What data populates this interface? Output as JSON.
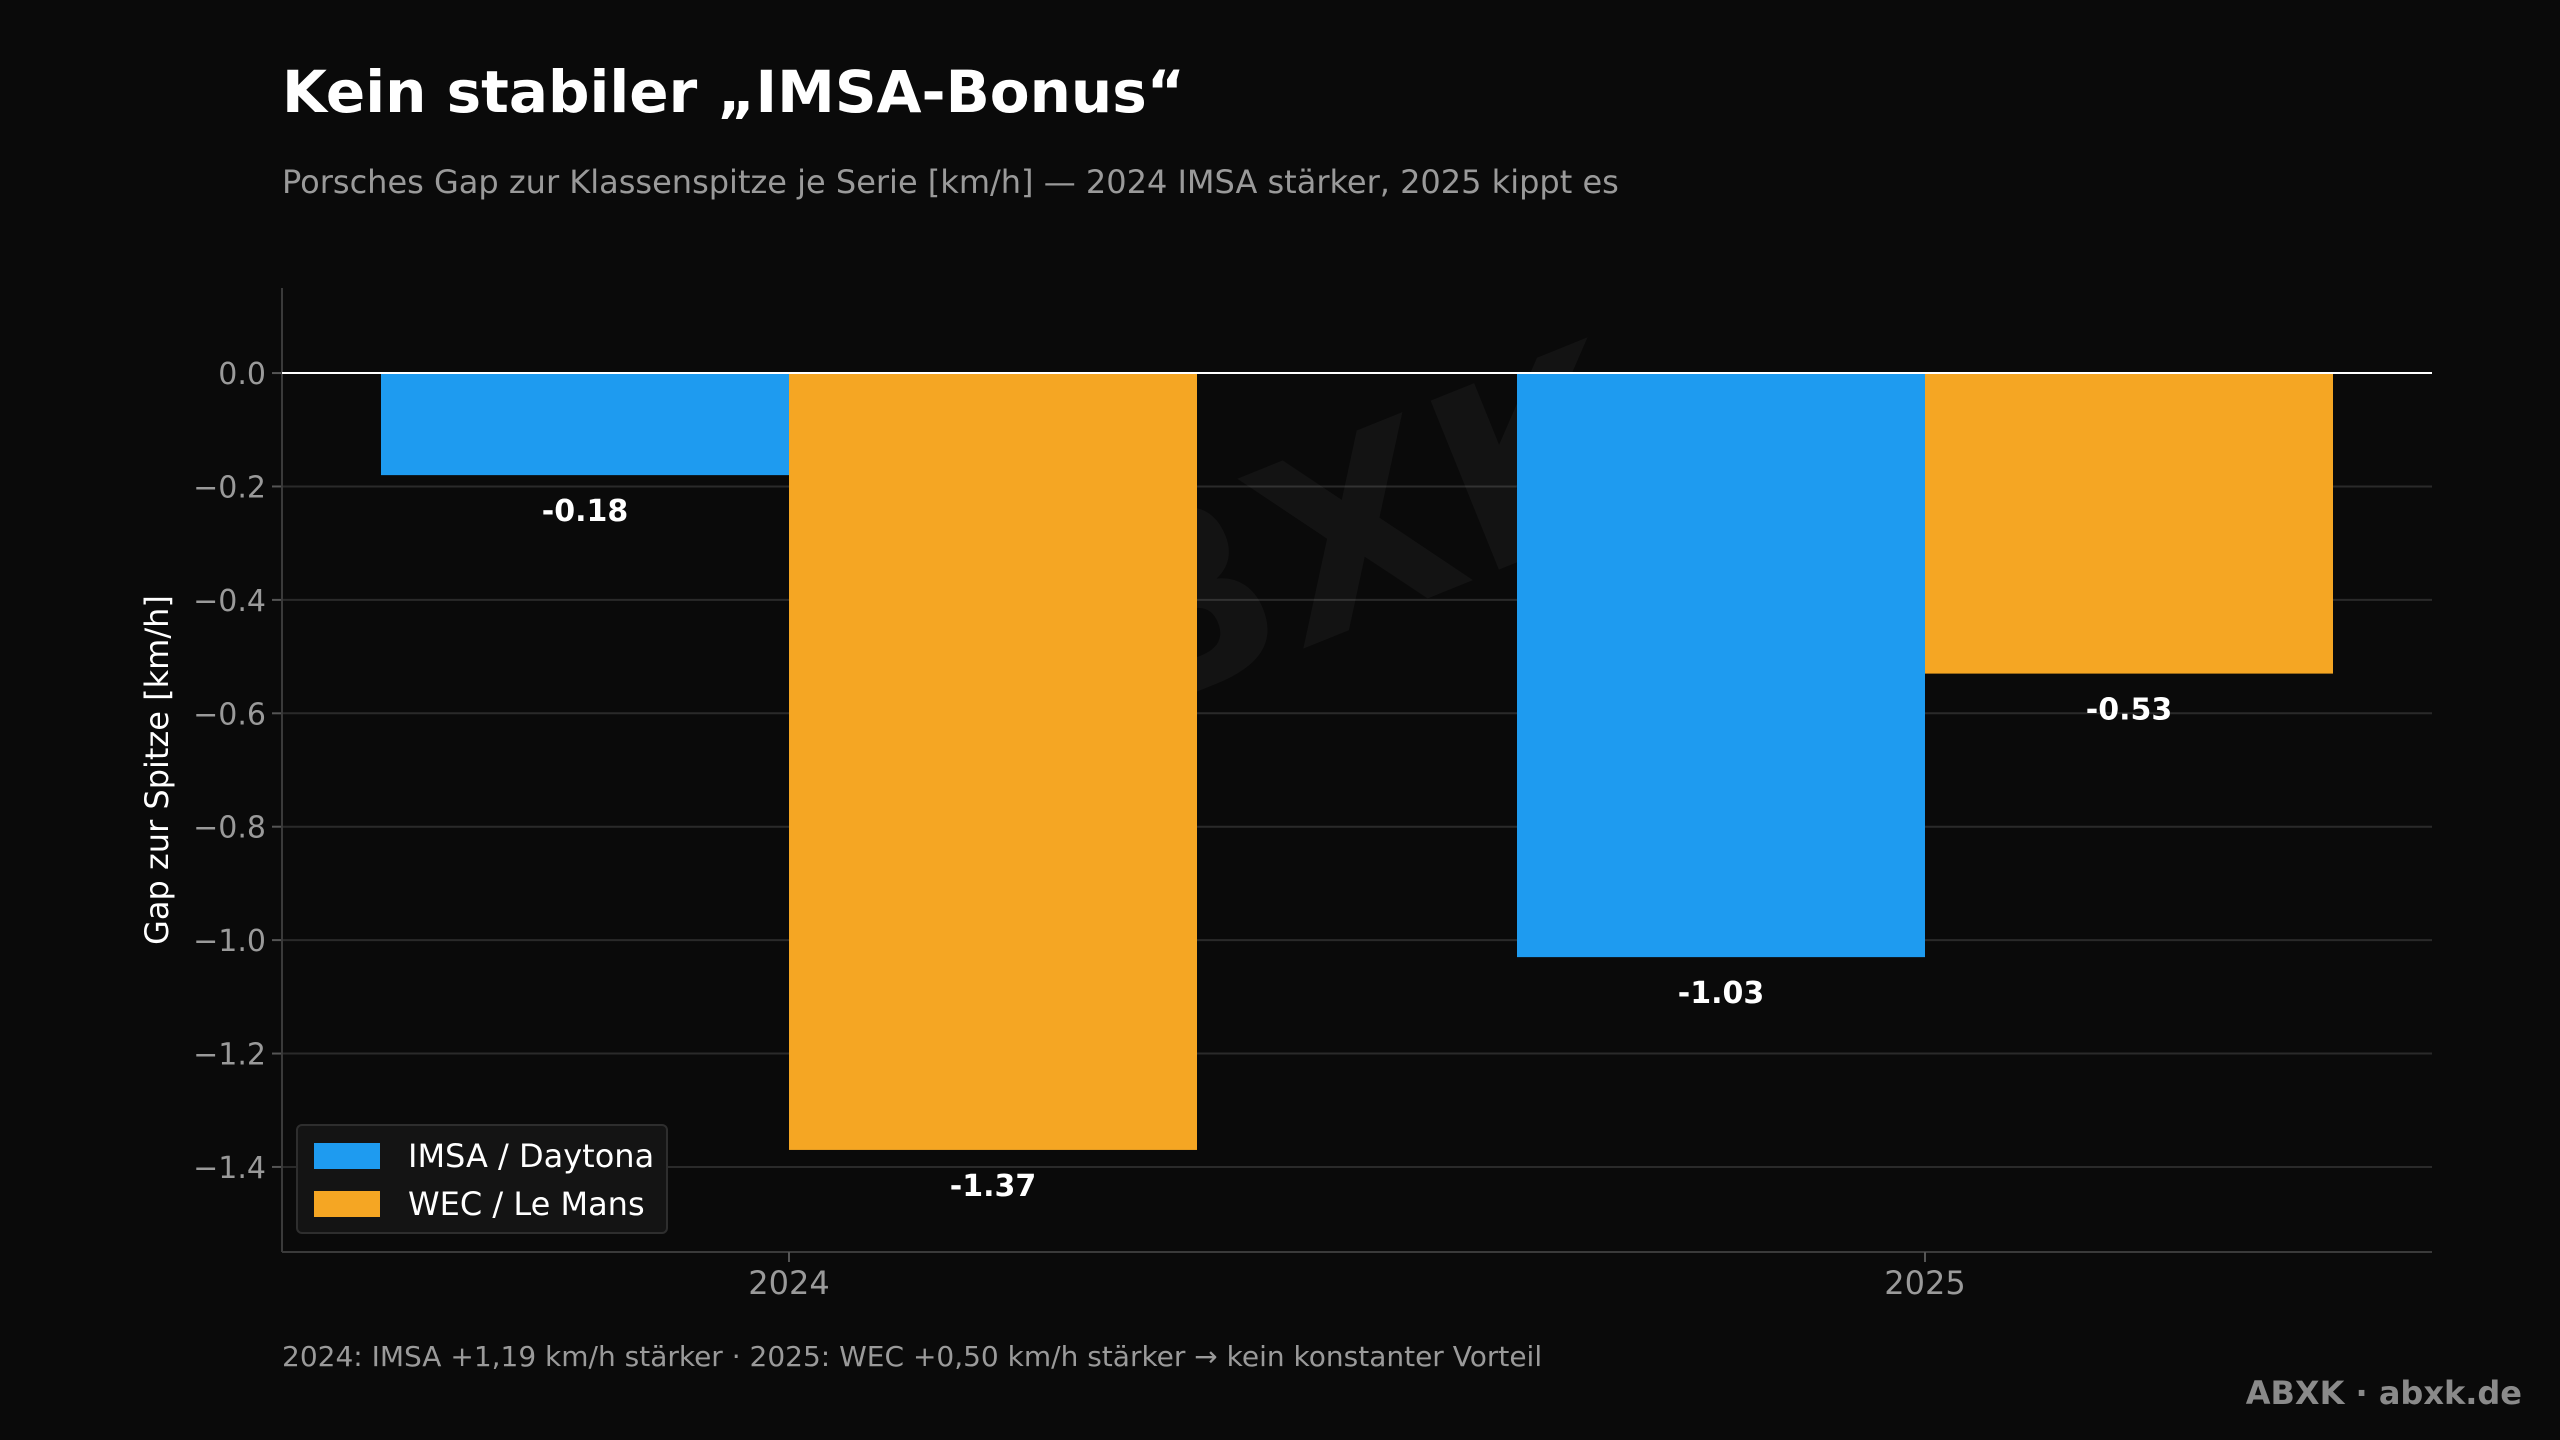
{
  "title": "Kein stabiler „IMSA-Bonus“",
  "subtitle": "Porsches Gap zur Klassenspitze je Serie [km/h] — 2024 IMSA stärker, 2025 kippt es",
  "footnote": "2024: IMSA +1,19 km/h stärker  ·  2025: WEC +0,50 km/h stärker → kein konstanter Vorteil",
  "brand": "ABXK · abxk.de",
  "watermark": "ABXK",
  "colors": {
    "background": "#0a0a0a",
    "imsa": "#1e9bf0",
    "wec": "#f5a623",
    "grid": "#2a2a2a",
    "zero_line": "#ffffff",
    "tick_text": "#9a9a9a"
  },
  "chart_data": {
    "type": "bar",
    "categories": [
      "2024",
      "2025"
    ],
    "series": [
      {
        "name": "IMSA / Daytona",
        "values": [
          -0.18,
          -1.03
        ],
        "labels": [
          "-0.18",
          "-1.03"
        ]
      },
      {
        "name": "WEC / Le Mans",
        "values": [
          -1.37,
          -0.53
        ],
        "labels": [
          "-1.37",
          "-0.53"
        ]
      }
    ],
    "title": "Kein stabiler „IMSA-Bonus“",
    "xlabel": "",
    "ylabel": "Gap zur Spitze [km/h]",
    "ylim": [
      -1.55,
      0.15
    ],
    "yticks": [
      0.0,
      -0.2,
      -0.4,
      -0.6,
      -0.8,
      -1.0,
      -1.2,
      -1.4
    ],
    "ytick_labels": [
      "0.0",
      "−0.2",
      "−0.4",
      "−0.6",
      "−0.8",
      "−1.0",
      "−1.2",
      "−1.4"
    ],
    "grid": true,
    "legend_position": "bottom-left"
  }
}
